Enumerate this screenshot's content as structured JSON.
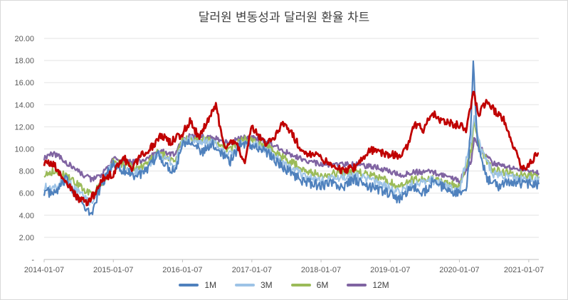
{
  "chart_data": {
    "type": "line",
    "title": "달러원 변동성과 달러원 환율 차트",
    "xlabel": "",
    "ylabel": "",
    "ylim": [
      0,
      20
    ],
    "yticks": [
      "-",
      "2.00",
      "4.00",
      "6.00",
      "8.00",
      "10.00",
      "12.00",
      "14.00",
      "16.00",
      "18.00",
      "20.00"
    ],
    "xticks": [
      "2014-01-07",
      "2015-01-07",
      "2016-01-07",
      "2017-01-07",
      "2018-01-07",
      "2019-01-07",
      "2020-01-07",
      "2021-01-07"
    ],
    "x_range": [
      "2014-01-07",
      "2021-03-01"
    ],
    "legend_position": "bottom",
    "grid": "horizontal",
    "series": [
      {
        "name": "1M",
        "color": "#4f81bd",
        "points": [
          [
            "2014-01-07",
            6.2
          ],
          [
            "2014-03-01",
            5.9
          ],
          [
            "2014-05-01",
            7.2
          ],
          [
            "2014-07-01",
            5.8
          ],
          [
            "2014-08-15",
            4.4
          ],
          [
            "2014-09-15",
            4.1
          ],
          [
            "2014-10-15",
            5.8
          ],
          [
            "2014-12-01",
            7.6
          ],
          [
            "2015-01-07",
            8.6
          ],
          [
            "2015-03-01",
            8.1
          ],
          [
            "2015-05-01",
            7.6
          ],
          [
            "2015-07-01",
            7.9
          ],
          [
            "2015-09-01",
            9.6
          ],
          [
            "2015-10-15",
            8.4
          ],
          [
            "2015-12-01",
            8.1
          ],
          [
            "2016-01-07",
            10.6
          ],
          [
            "2016-03-01",
            10.8
          ],
          [
            "2016-04-15",
            9.6
          ],
          [
            "2016-06-15",
            10.4
          ],
          [
            "2016-08-01",
            9.7
          ],
          [
            "2016-09-15",
            8.9
          ],
          [
            "2016-11-15",
            10.6
          ],
          [
            "2017-01-07",
            10.3
          ],
          [
            "2017-02-15",
            10.0
          ],
          [
            "2017-04-01",
            9.7
          ],
          [
            "2017-06-01",
            8.6
          ],
          [
            "2017-08-01",
            7.9
          ],
          [
            "2017-09-15",
            7.3
          ],
          [
            "2017-11-01",
            6.9
          ],
          [
            "2018-01-07",
            6.7
          ],
          [
            "2018-03-01",
            6.9
          ],
          [
            "2018-05-01",
            6.5
          ],
          [
            "2018-07-01",
            7.3
          ],
          [
            "2018-09-01",
            6.6
          ],
          [
            "2018-11-01",
            6.4
          ],
          [
            "2019-01-07",
            5.9
          ],
          [
            "2019-03-01",
            5.4
          ],
          [
            "2019-05-01",
            6.6
          ],
          [
            "2019-07-01",
            6.0
          ],
          [
            "2019-08-15",
            7.0
          ],
          [
            "2019-10-01",
            6.6
          ],
          [
            "2019-12-01",
            6.2
          ],
          [
            "2020-01-07",
            5.9
          ],
          [
            "2020-02-15",
            6.3
          ],
          [
            "2020-03-10",
            13.0
          ],
          [
            "2020-03-20",
            17.5
          ],
          [
            "2020-04-15",
            10.0
          ],
          [
            "2020-06-01",
            7.3
          ],
          [
            "2020-08-01",
            6.6
          ],
          [
            "2020-10-01",
            7.1
          ],
          [
            "2020-12-01",
            6.9
          ],
          [
            "2021-01-07",
            6.9
          ],
          [
            "2021-03-01",
            6.8
          ]
        ]
      },
      {
        "name": "3M",
        "color": "#9dc3e6",
        "points": [
          [
            "2014-01-07",
            6.6
          ],
          [
            "2014-03-01",
            6.4
          ],
          [
            "2014-05-01",
            7.3
          ],
          [
            "2014-07-01",
            6.2
          ],
          [
            "2014-09-15",
            5.0
          ],
          [
            "2014-10-15",
            6.1
          ],
          [
            "2014-12-01",
            7.7
          ],
          [
            "2015-01-07",
            8.7
          ],
          [
            "2015-03-01",
            8.3
          ],
          [
            "2015-05-01",
            7.9
          ],
          [
            "2015-07-01",
            8.2
          ],
          [
            "2015-09-01",
            9.6
          ],
          [
            "2015-12-01",
            8.6
          ],
          [
            "2016-01-07",
            10.6
          ],
          [
            "2016-03-01",
            10.9
          ],
          [
            "2016-06-15",
            10.5
          ],
          [
            "2016-09-15",
            9.4
          ],
          [
            "2016-11-15",
            10.7
          ],
          [
            "2017-01-07",
            10.5
          ],
          [
            "2017-04-01",
            9.9
          ],
          [
            "2017-06-01",
            9.0
          ],
          [
            "2017-09-15",
            7.8
          ],
          [
            "2017-11-01",
            7.4
          ],
          [
            "2018-01-07",
            7.1
          ],
          [
            "2018-03-01",
            7.3
          ],
          [
            "2018-07-01",
            7.6
          ],
          [
            "2018-11-01",
            6.9
          ],
          [
            "2019-01-07",
            6.4
          ],
          [
            "2019-03-01",
            6.0
          ],
          [
            "2019-05-01",
            6.9
          ],
          [
            "2019-08-15",
            7.2
          ],
          [
            "2019-12-01",
            6.5
          ],
          [
            "2020-01-07",
            6.2
          ],
          [
            "2020-03-10",
            11.0
          ],
          [
            "2020-03-25",
            13.2
          ],
          [
            "2020-05-01",
            9.8
          ],
          [
            "2020-07-01",
            7.8
          ],
          [
            "2020-10-01",
            7.4
          ],
          [
            "2021-01-07",
            7.2
          ],
          [
            "2021-03-01",
            7.1
          ]
        ]
      },
      {
        "name": "6M",
        "color": "#9bbb59",
        "points": [
          [
            "2014-01-07",
            7.8
          ],
          [
            "2014-03-01",
            8.0
          ],
          [
            "2014-05-01",
            7.6
          ],
          [
            "2014-07-01",
            6.8
          ],
          [
            "2014-09-15",
            5.8
          ],
          [
            "2014-11-01",
            6.8
          ],
          [
            "2014-12-15",
            7.9
          ],
          [
            "2015-01-07",
            8.8
          ],
          [
            "2015-03-01",
            8.6
          ],
          [
            "2015-05-01",
            8.3
          ],
          [
            "2015-07-01",
            8.6
          ],
          [
            "2015-09-01",
            9.7
          ],
          [
            "2015-12-01",
            9.0
          ],
          [
            "2016-01-07",
            10.8
          ],
          [
            "2016-03-01",
            11.0
          ],
          [
            "2016-06-15",
            10.7
          ],
          [
            "2016-09-15",
            9.9
          ],
          [
            "2016-11-15",
            10.9
          ],
          [
            "2017-01-07",
            10.7
          ],
          [
            "2017-04-01",
            10.2
          ],
          [
            "2017-06-01",
            9.4
          ],
          [
            "2017-09-15",
            8.4
          ],
          [
            "2017-11-01",
            8.0
          ],
          [
            "2018-01-07",
            7.7
          ],
          [
            "2018-04-01",
            7.8
          ],
          [
            "2018-07-01",
            8.0
          ],
          [
            "2018-11-01",
            7.5
          ],
          [
            "2019-01-07",
            7.0
          ],
          [
            "2019-03-01",
            6.6
          ],
          [
            "2019-05-01",
            7.2
          ],
          [
            "2019-08-15",
            7.4
          ],
          [
            "2019-12-01",
            6.8
          ],
          [
            "2020-01-07",
            6.5
          ],
          [
            "2020-03-10",
            10.0
          ],
          [
            "2020-03-25",
            12.5
          ],
          [
            "2020-05-01",
            9.8
          ],
          [
            "2020-07-01",
            8.1
          ],
          [
            "2020-10-01",
            7.8
          ],
          [
            "2021-01-07",
            7.6
          ],
          [
            "2021-03-01",
            7.5
          ]
        ]
      },
      {
        "name": "12M",
        "color": "#8064a2",
        "points": [
          [
            "2014-01-07",
            9.2
          ],
          [
            "2014-03-01",
            9.6
          ],
          [
            "2014-05-01",
            8.8
          ],
          [
            "2014-07-01",
            8.0
          ],
          [
            "2014-09-15",
            7.2
          ],
          [
            "2014-11-01",
            7.6
          ],
          [
            "2014-12-15",
            8.4
          ],
          [
            "2015-01-07",
            9.1
          ],
          [
            "2015-03-01",
            9.0
          ],
          [
            "2015-05-01",
            8.8
          ],
          [
            "2015-07-01",
            9.0
          ],
          [
            "2015-09-01",
            9.8
          ],
          [
            "2015-12-01",
            9.5
          ],
          [
            "2016-01-07",
            10.9
          ],
          [
            "2016-03-01",
            11.2
          ],
          [
            "2016-06-15",
            11.0
          ],
          [
            "2016-09-15",
            10.5
          ],
          [
            "2016-11-15",
            11.1
          ],
          [
            "2017-01-07",
            11.0
          ],
          [
            "2017-04-01",
            10.6
          ],
          [
            "2017-06-01",
            10.0
          ],
          [
            "2017-09-15",
            9.2
          ],
          [
            "2017-11-01",
            8.9
          ],
          [
            "2018-01-07",
            8.6
          ],
          [
            "2018-04-01",
            8.6
          ],
          [
            "2018-07-01",
            8.6
          ],
          [
            "2018-11-01",
            8.3
          ],
          [
            "2019-01-07",
            8.0
          ],
          [
            "2019-03-01",
            7.6
          ],
          [
            "2019-05-01",
            7.9
          ],
          [
            "2019-08-15",
            7.9
          ],
          [
            "2019-12-01",
            7.4
          ],
          [
            "2020-01-07",
            7.0
          ],
          [
            "2020-03-10",
            9.0
          ],
          [
            "2020-03-25",
            11.0
          ],
          [
            "2020-05-01",
            10.0
          ],
          [
            "2020-07-01",
            8.7
          ],
          [
            "2020-10-01",
            8.3
          ],
          [
            "2021-01-07",
            8.0
          ],
          [
            "2021-03-01",
            7.8
          ]
        ]
      },
      {
        "name": "",
        "color": "#c00000",
        "points": [
          [
            "2014-01-07",
            8.8
          ],
          [
            "2014-03-01",
            8.5
          ],
          [
            "2014-05-01",
            7.0
          ],
          [
            "2014-07-01",
            5.6
          ],
          [
            "2014-08-15",
            5.1
          ],
          [
            "2014-10-01",
            5.9
          ],
          [
            "2014-11-15",
            7.3
          ],
          [
            "2015-01-07",
            7.8
          ],
          [
            "2015-03-01",
            9.3
          ],
          [
            "2015-04-15",
            8.1
          ],
          [
            "2015-06-01",
            9.5
          ],
          [
            "2015-08-01",
            10.2
          ],
          [
            "2015-09-15",
            11.3
          ],
          [
            "2015-11-01",
            10.6
          ],
          [
            "2016-01-07",
            11.4
          ],
          [
            "2016-02-20",
            12.6
          ],
          [
            "2016-04-01",
            11.0
          ],
          [
            "2016-06-01",
            13.0
          ],
          [
            "2016-07-01",
            14.0
          ],
          [
            "2016-08-15",
            10.0
          ],
          [
            "2016-10-01",
            10.8
          ],
          [
            "2016-12-01",
            9.0
          ],
          [
            "2017-01-07",
            12.0
          ],
          [
            "2017-02-15",
            11.2
          ],
          [
            "2017-03-15",
            10.4
          ],
          [
            "2017-05-01",
            10.9
          ],
          [
            "2017-06-15",
            12.4
          ],
          [
            "2017-08-01",
            11.5
          ],
          [
            "2017-09-15",
            10.2
          ],
          [
            "2017-11-01",
            9.6
          ],
          [
            "2018-01-07",
            9.2
          ],
          [
            "2018-03-01",
            8.6
          ],
          [
            "2018-05-01",
            8.0
          ],
          [
            "2018-07-01",
            8.3
          ],
          [
            "2018-08-15",
            9.3
          ],
          [
            "2018-10-01",
            9.9
          ],
          [
            "2018-12-01",
            9.6
          ],
          [
            "2019-01-07",
            9.5
          ],
          [
            "2019-03-01",
            9.4
          ],
          [
            "2019-04-15",
            10.4
          ],
          [
            "2019-05-15",
            12.3
          ],
          [
            "2019-07-01",
            11.8
          ],
          [
            "2019-08-15",
            13.3
          ],
          [
            "2019-10-01",
            12.5
          ],
          [
            "2019-12-01",
            12.3
          ],
          [
            "2020-01-07",
            12.1
          ],
          [
            "2020-02-15",
            11.8
          ],
          [
            "2020-03-20",
            15.3
          ],
          [
            "2020-04-15",
            13.2
          ],
          [
            "2020-06-01",
            14.2
          ],
          [
            "2020-07-15",
            13.4
          ],
          [
            "2020-09-01",
            12.5
          ],
          [
            "2020-10-15",
            10.5
          ],
          [
            "2020-12-01",
            8.3
          ],
          [
            "2021-01-07",
            8.5
          ],
          [
            "2021-02-15",
            9.4
          ],
          [
            "2021-03-01",
            9.6
          ]
        ]
      }
    ]
  }
}
